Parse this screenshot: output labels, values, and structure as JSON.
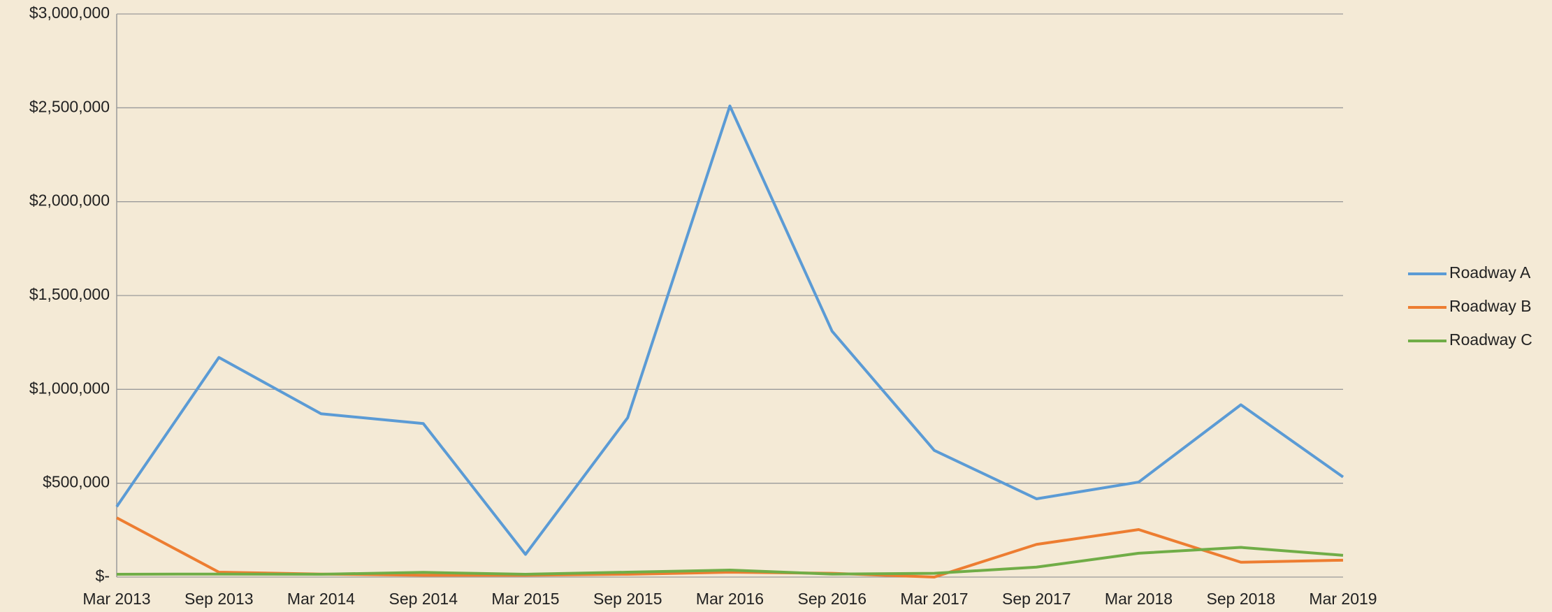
{
  "chart_data": {
    "type": "line",
    "categories": [
      "Mar 2013",
      "Sep 2013",
      "Mar 2014",
      "Sep 2014",
      "Mar 2015",
      "Sep 2015",
      "Mar 2016",
      "Sep 2016",
      "Mar 2017",
      "Sep 2017",
      "Mar 2018",
      "Sep 2018",
      "Mar 2019"
    ],
    "series": [
      {
        "name": "Roadway A",
        "color": "#5b9bd5",
        "values": [
          375000,
          1170000,
          870000,
          818000,
          121000,
          849000,
          2510000,
          1310000,
          675000,
          417000,
          506000,
          918000,
          533000
        ]
      },
      {
        "name": "Roadway B",
        "color": "#ed7d31",
        "values": [
          316000,
          26000,
          16000,
          10000,
          10000,
          15000,
          26000,
          20000,
          0,
          174000,
          253000,
          79000,
          90000
        ]
      },
      {
        "name": "Roadway C",
        "color": "#70ad47",
        "values": [
          15000,
          16000,
          15000,
          25000,
          15000,
          26000,
          37000,
          16000,
          20000,
          53000,
          127000,
          158000,
          116000
        ]
      }
    ],
    "ylim": [
      0,
      3000000
    ],
    "yticks": [
      {
        "value": 0,
        "label": "$-"
      },
      {
        "value": 500000,
        "label": "$500,000"
      },
      {
        "value": 1000000,
        "label": "$1,000,000"
      },
      {
        "value": 1500000,
        "label": "$1,500,000"
      },
      {
        "value": 2000000,
        "label": "$2,000,000"
      },
      {
        "value": 2500000,
        "label": "$2,500,000"
      },
      {
        "value": 3000000,
        "label": "$3,000,000"
      }
    ],
    "grid": true,
    "legend": "right"
  }
}
